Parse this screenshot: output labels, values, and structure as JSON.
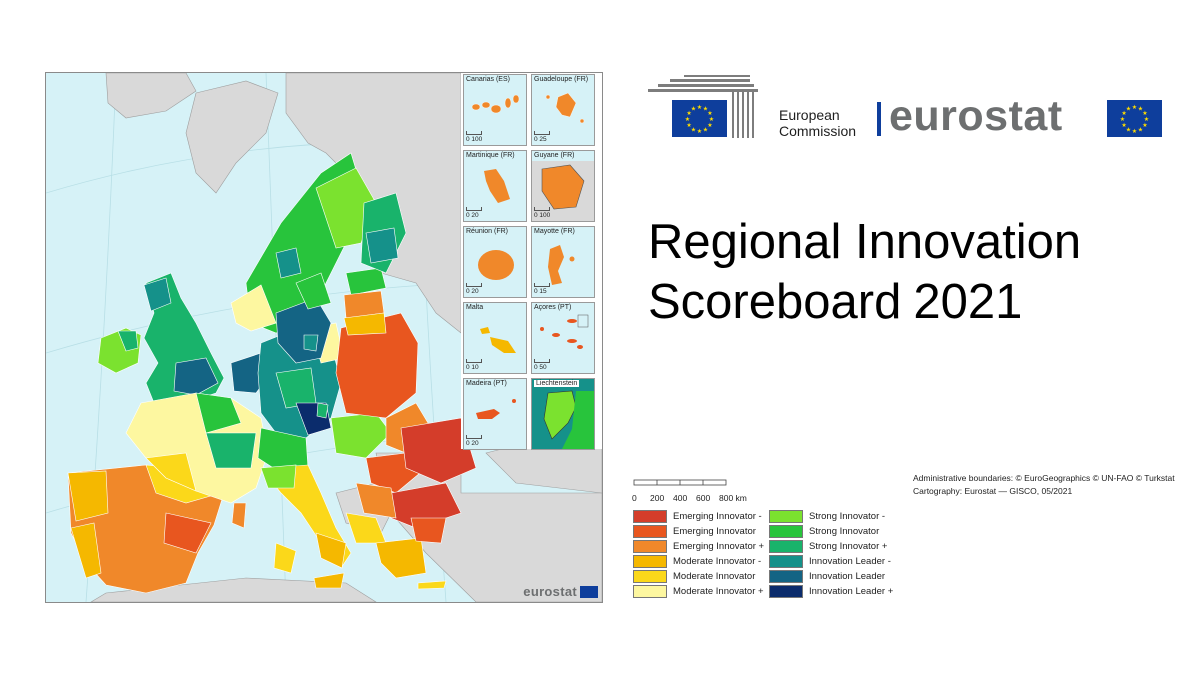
{
  "title": {
    "line1": "Regional Innovation",
    "line2_main": "Scoreboard",
    "line2_year": "2021"
  },
  "logos": {
    "european_commission": "European Commission",
    "ec_line1": "European",
    "ec_line2": "Commission",
    "eurostat": "eurostat",
    "map_watermark": "eurostat"
  },
  "scale_bar": {
    "ticks": [
      "0",
      "200",
      "400",
      "600",
      "800 km"
    ]
  },
  "credits": {
    "boundaries": "Administrative boundaries: © EuroGeographics © UN-FAO © Turkstat",
    "cartography": "Cartography: Eurostat — GISCO, 05/2021"
  },
  "insets": [
    {
      "name": "Canarias (ES)",
      "scale": "0  100"
    },
    {
      "name": "Guadeloupe (FR)",
      "scale": "0  25"
    },
    {
      "name": "Martinique (FR)",
      "scale": "0  20"
    },
    {
      "name": "Guyane (FR)",
      "scale": "0  100"
    },
    {
      "name": "Réunion (FR)",
      "scale": "0  20"
    },
    {
      "name": "Mayotte (FR)",
      "scale": "0  15"
    },
    {
      "name": "Malta",
      "scale": "0  10"
    },
    {
      "name": "Açores (PT)",
      "scale": "0  50"
    },
    {
      "name": "Madeira (PT)",
      "scale": "0  20"
    },
    {
      "name": "Liechtenstein",
      "scale": ""
    }
  ],
  "legend": [
    {
      "label": "Emerging Innovator -",
      "color": "#d43d2a"
    },
    {
      "label": "Emerging Innovator",
      "color": "#e8561f"
    },
    {
      "label": "Emerging Innovator +",
      "color": "#f0882a"
    },
    {
      "label": "Moderate Innovator -",
      "color": "#f5b800"
    },
    {
      "label": "Moderate Innovator",
      "color": "#fbd81a"
    },
    {
      "label": "Moderate Innovator +",
      "color": "#fdf7a0"
    },
    {
      "label": "Strong Innovator -",
      "color": "#7be22f"
    },
    {
      "label": "Strong Innovator",
      "color": "#28c43c"
    },
    {
      "label": "Strong Innovator +",
      "color": "#19b36b"
    },
    {
      "label": "Innovation Leader -",
      "color": "#15918a"
    },
    {
      "label": "Innovation Leader",
      "color": "#146484"
    },
    {
      "label": "Innovation Leader +",
      "color": "#0b2c6c"
    }
  ],
  "colors": {
    "sea": "#d6f2f7",
    "non_eu_land": "#d9d9d9",
    "eu_blue": "#0e3e9c",
    "eu_star": "#ffdd00",
    "eurostat_grey": "#6d6f70"
  }
}
